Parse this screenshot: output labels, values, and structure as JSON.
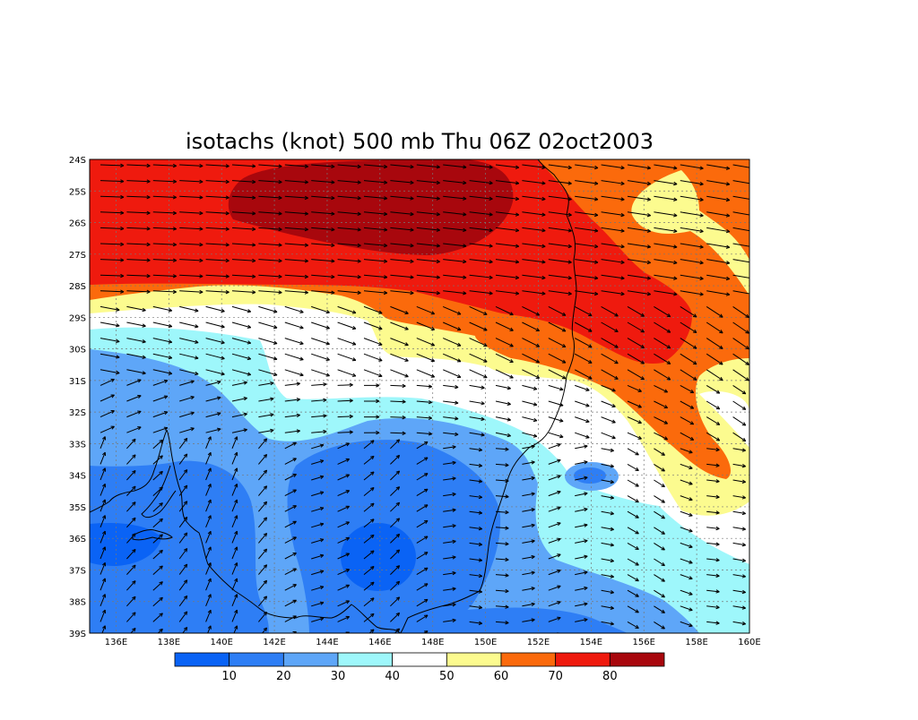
{
  "map": {
    "title": "isotachs (knot) 500 mb Thu 06Z 02oct2003",
    "variable": "isotachs",
    "units": "knot",
    "level": "500 mb",
    "valid_time": "Thu 06Z 02oct2003",
    "lon_range": [
      135,
      160
    ],
    "lat_range": [
      -39,
      -24
    ],
    "x_tick_labels": [
      "136E",
      "138E",
      "140E",
      "142E",
      "144E",
      "146E",
      "148E",
      "150E",
      "152E",
      "154E",
      "156E",
      "158E",
      "160E"
    ],
    "y_tick_labels": [
      "24S",
      "25S",
      "26S",
      "27S",
      "28S",
      "29S",
      "30S",
      "31S",
      "32S",
      "33S",
      "34S",
      "35S",
      "36S",
      "37S",
      "38S",
      "39S"
    ],
    "grid": "dotted",
    "vectors": "wind direction arrows"
  },
  "colorbar": {
    "labels": [
      "10",
      "20",
      "30",
      "40",
      "50",
      "60",
      "70",
      "80"
    ],
    "colors": [
      "#0a63f5",
      "#2e7ef5",
      "#5ea6f8",
      "#9ef7fb",
      "#ffffff",
      "#fcfb8f",
      "#fb6a0c",
      "#ef1a0e",
      "#a8070d"
    ]
  },
  "colors": {
    "c0_10": "#0a63f5",
    "c10_20": "#2e7ef5",
    "c20_30": "#5ea6f8",
    "c30_40": "#9ef7fb",
    "c40_50": "#ffffff",
    "c50_60": "#fcfb8f",
    "c60_70": "#fb6a0c",
    "c70_80": "#ef1a0e",
    "c80_plus": "#a8070d"
  }
}
